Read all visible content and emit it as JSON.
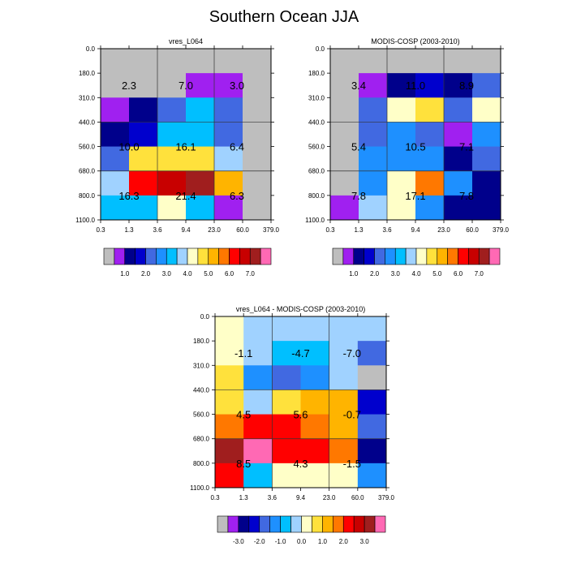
{
  "title": "Southern Ocean JJA",
  "palette": [
    "#bebebe",
    "#a020f0",
    "#00008b",
    "#0000cd",
    "#4169e1",
    "#1e90ff",
    "#00bfff",
    "#a0d2ff",
    "#ffffc8",
    "#ffe13c",
    "#ffb400",
    "#ff7800",
    "#ff0000",
    "#c80000",
    "#a01e1e",
    "#ff69b4"
  ],
  "x_ticks": [
    "0.3",
    "1.3",
    "3.6",
    "9.4",
    "23.0",
    "60.0",
    "379.0"
  ],
  "y_ticks": [
    "0.0",
    "180.0",
    "310.0",
    "440.0",
    "560.0",
    "680.0",
    "800.0",
    "1100.0"
  ],
  "colorbars": [
    {
      "labels": [
        "1.0",
        "2.0",
        "3.0",
        "4.0",
        "5.0",
        "6.0",
        "7.0"
      ],
      "positions": [
        2,
        4,
        6,
        8,
        10,
        12,
        14
      ]
    },
    {
      "labels": [
        "-3.0",
        "-2.0",
        "-1.0",
        "0.0",
        "1.0",
        "2.0",
        "3.0"
      ],
      "positions": [
        2,
        4,
        6,
        8,
        10,
        12,
        14
      ]
    }
  ],
  "chart_data": [
    {
      "type": "heatmap",
      "title": "vres_L064",
      "x_ticks": [
        "0.3",
        "1.3",
        "3.6",
        "9.4",
        "23.0",
        "60.0",
        "379.0"
      ],
      "y_ticks": [
        "0.0",
        "180.0",
        "310.0",
        "440.0",
        "560.0",
        "680.0",
        "800.0",
        "1100.0"
      ],
      "cells": [
        [
          0,
          0,
          0,
          0,
          0,
          0
        ],
        [
          0,
          0,
          0,
          1,
          1,
          0
        ],
        [
          1,
          2,
          4,
          6,
          4,
          0
        ],
        [
          2,
          3,
          6,
          6,
          4,
          0
        ],
        [
          4,
          9,
          9,
          9,
          7,
          0
        ],
        [
          7,
          12,
          13,
          14,
          10,
          0
        ],
        [
          6,
          6,
          8,
          6,
          1,
          0
        ]
      ],
      "annotations": [
        {
          "text": "2.3",
          "row": 1.5,
          "col": 1
        },
        {
          "text": "7.0",
          "row": 1.5,
          "col": 3
        },
        {
          "text": "3.0",
          "row": 1.5,
          "col": 4.8
        },
        {
          "text": "10.0",
          "row": 4,
          "col": 1
        },
        {
          "text": "16.1",
          "row": 4,
          "col": 3
        },
        {
          "text": "6.4",
          "row": 4,
          "col": 4.8
        },
        {
          "text": "16.3",
          "row": 6,
          "col": 1
        },
        {
          "text": "21.4",
          "row": 6,
          "col": 3
        },
        {
          "text": "6.3",
          "row": 6,
          "col": 4.8
        }
      ],
      "colorbar": 0
    },
    {
      "type": "heatmap",
      "title": "MODIS-COSP (2003-2010)",
      "x_ticks": [
        "0.3",
        "1.3",
        "3.6",
        "9.4",
        "23.0",
        "60.0",
        "379.0"
      ],
      "y_ticks": [
        "0.0",
        "180.0",
        "310.0",
        "440.0",
        "560.0",
        "680.0",
        "800.0",
        "1100.0"
      ],
      "cells": [
        [
          0,
          0,
          0,
          0,
          0,
          0
        ],
        [
          0,
          1,
          2,
          3,
          2,
          4
        ],
        [
          0,
          4,
          8,
          9,
          4,
          8
        ],
        [
          0,
          4,
          5,
          4,
          1,
          5
        ],
        [
          0,
          5,
          5,
          5,
          2,
          4
        ],
        [
          0,
          5,
          8,
          11,
          5,
          2
        ],
        [
          1,
          7,
          8,
          5,
          2,
          2
        ]
      ],
      "annotations": [
        {
          "text": "3.4",
          "row": 1.5,
          "col": 1
        },
        {
          "text": "11.0",
          "row": 1.5,
          "col": 3
        },
        {
          "text": "8.9",
          "row": 1.5,
          "col": 4.8
        },
        {
          "text": "5.4",
          "row": 4,
          "col": 1
        },
        {
          "text": "10.5",
          "row": 4,
          "col": 3
        },
        {
          "text": "7.1",
          "row": 4,
          "col": 4.8
        },
        {
          "text": "7.8",
          "row": 6,
          "col": 1
        },
        {
          "text": "17.1",
          "row": 6,
          "col": 3
        },
        {
          "text": "7.8",
          "row": 6,
          "col": 4.8
        }
      ],
      "colorbar": 0
    },
    {
      "type": "heatmap",
      "title": "vres_L064 - MODIS-COSP (2003-2010)",
      "x_ticks": [
        "0.3",
        "1.3",
        "3.6",
        "9.4",
        "23.0",
        "60.0",
        "379.0"
      ],
      "y_ticks": [
        "0.0",
        "180.0",
        "310.0",
        "440.0",
        "560.0",
        "680.0",
        "800.0",
        "1100.0"
      ],
      "cells": [
        [
          8,
          7,
          7,
          7,
          7,
          7
        ],
        [
          8,
          7,
          6,
          6,
          7,
          4
        ],
        [
          9,
          5,
          4,
          5,
          7,
          0
        ],
        [
          9,
          7,
          9,
          10,
          10,
          3
        ],
        [
          11,
          12,
          12,
          11,
          10,
          4
        ],
        [
          14,
          15,
          12,
          12,
          11,
          2
        ],
        [
          12,
          6,
          8,
          8,
          8,
          5
        ]
      ],
      "annotations": [
        {
          "text": "-1.1",
          "row": 1.5,
          "col": 1
        },
        {
          "text": "-4.7",
          "row": 1.5,
          "col": 3
        },
        {
          "text": "-7.0",
          "row": 1.5,
          "col": 4.8
        },
        {
          "text": "4.5",
          "row": 4,
          "col": 1
        },
        {
          "text": "5.6",
          "row": 4,
          "col": 3
        },
        {
          "text": "-0.7",
          "row": 4,
          "col": 4.8
        },
        {
          "text": "8.5",
          "row": 6,
          "col": 1
        },
        {
          "text": "4.3",
          "row": 6,
          "col": 3
        },
        {
          "text": "-1.5",
          "row": 6,
          "col": 4.8
        }
      ],
      "colorbar": 1
    }
  ]
}
